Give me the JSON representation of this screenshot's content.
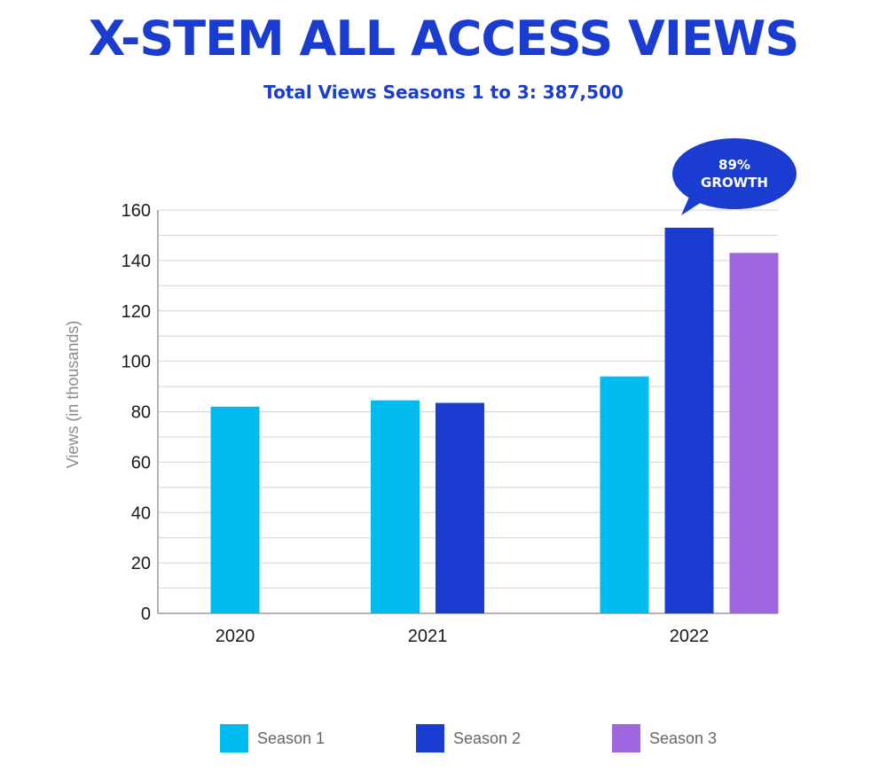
{
  "title": "X-STEM ALL ACCESS VIEWS",
  "subtitle": "Total Views Seasons 1 to 3: 387,500",
  "callout": {
    "line1": "89%",
    "line2": "GROWTH"
  },
  "colors": {
    "season1": "#00bbf0",
    "season2": "#1a3cd1",
    "season3": "#a066e0",
    "title": "#1a3cd1"
  },
  "chart_data": {
    "type": "bar",
    "categories": [
      "2020",
      "2021",
      "2022"
    ],
    "series": [
      {
        "name": "Season 1",
        "values": [
          82,
          84.5,
          94
        ]
      },
      {
        "name": "Season 2",
        "values": [
          null,
          83.5,
          153
        ]
      },
      {
        "name": "Season 3",
        "values": [
          null,
          null,
          143
        ]
      }
    ],
    "ylabel": "Views (in thousands)",
    "xlabel": "",
    "ylim": [
      0,
      160
    ],
    "yticks": [
      0,
      20,
      40,
      60,
      80,
      100,
      120,
      140,
      160
    ],
    "grid": true,
    "legend_position": "bottom"
  }
}
